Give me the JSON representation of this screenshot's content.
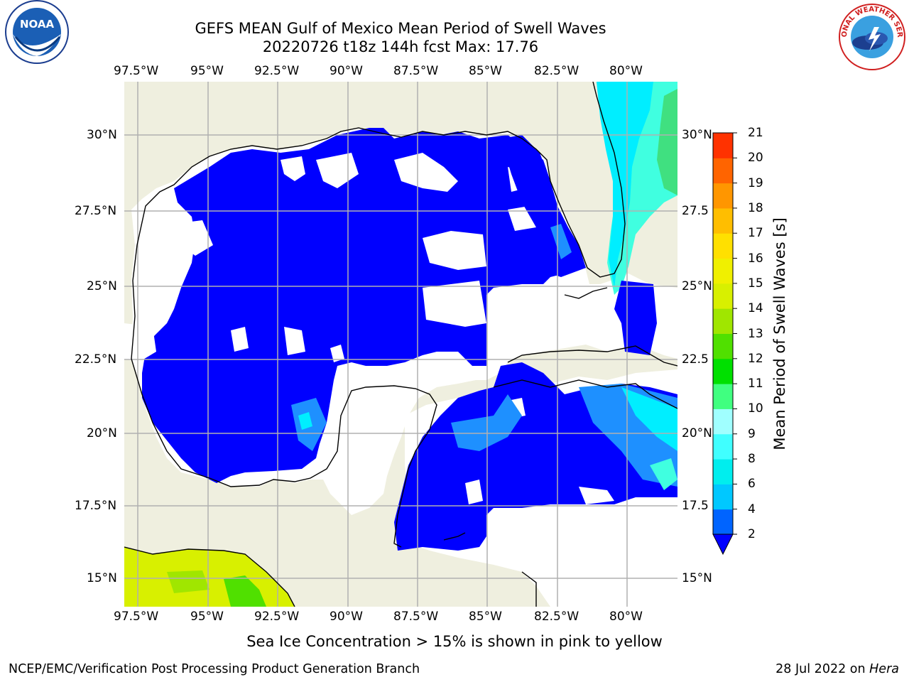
{
  "title": {
    "line1": "GEFS MEAN Gulf of Mexico Mean Period of Swell Waves",
    "line2": "20220726 t18z 144h fcst   Max: 17.76"
  },
  "axes": {
    "lon_labels": [
      "97.5°W",
      "95°W",
      "92.5°W",
      "90°W",
      "87.5°W",
      "85°W",
      "82.5°W",
      "80°W"
    ],
    "lat_labels_left": [
      "30°N",
      "27.5°N",
      "25°N",
      "22.5°N",
      "20°N",
      "17.5°N",
      "15°N"
    ],
    "lat_labels_right": [
      "30°N",
      "27.5",
      "25°N",
      "22.5",
      "20°N",
      "17.5",
      "15°N"
    ]
  },
  "colorbar": {
    "label": "Mean Period of Swell Waves [s]",
    "ticks": [
      "2",
      "4",
      "6",
      "8",
      "9",
      "10",
      "11",
      "12",
      "13",
      "14",
      "15",
      "16",
      "17",
      "18",
      "19",
      "20",
      "21"
    ],
    "colors": [
      "#0064ff",
      "#00c8ff",
      "#00eeee",
      "#40ffff",
      "#a0ffff",
      "#40ff80",
      "#00e000",
      "#50e000",
      "#a0e600",
      "#d8f000",
      "#f0f000",
      "#ffe000",
      "#ffbe00",
      "#ff9600",
      "#ff6400",
      "#ff3200",
      "#ff0000"
    ],
    "under_color": "#0000ff"
  },
  "colors": {
    "land": "#efefdf",
    "ocean_blue": "#0000ff",
    "light_blue": "#1e90ff",
    "cyan": "#00eeff",
    "aqua": "#40ffe0",
    "green": "#40e080",
    "yellow_green": "#d8f000",
    "grid": "#b0b0b0"
  },
  "logos": {
    "noaa_text": "NOAA",
    "nws_text": "NATIONAL WEATHER SERVICE"
  },
  "footer": {
    "note": "Sea Ice Concentration > 15% is shown in pink to yellow",
    "credit": "NCEP/EMC/Verification Post Processing Product Generation Branch",
    "date_prefix": "28 Jul 2022 on ",
    "date_host": "Hera"
  }
}
